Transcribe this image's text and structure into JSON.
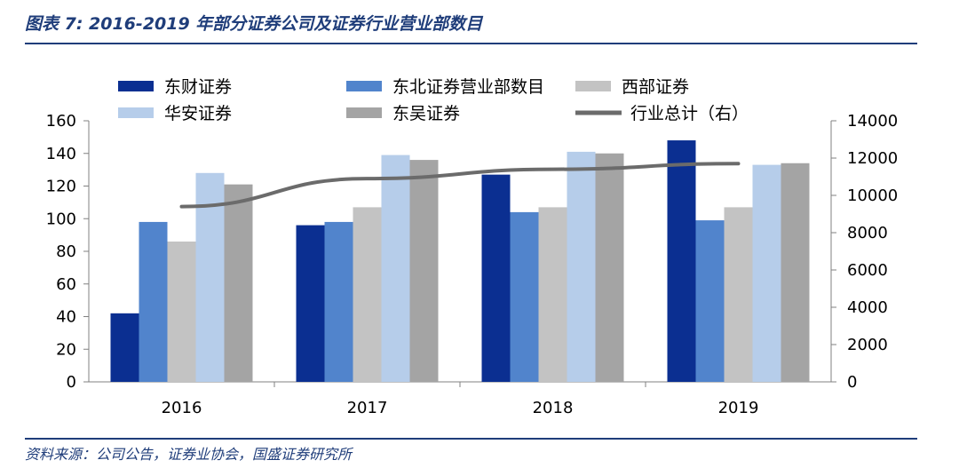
{
  "figure": {
    "title": "图表 7:  2016-2019 年部分证券公司及证券行业营业部数目",
    "source": "资料来源：公司公告，证券业协会，国盛证券研究所"
  },
  "chart_data": {
    "type": "bar",
    "title": "2016-2019 年部分证券公司及证券行业营业部数目",
    "categories": [
      "2016",
      "2017",
      "2018",
      "2019"
    ],
    "ylim": [
      0,
      160
    ],
    "yticks": [
      "0",
      "20",
      "40",
      "60",
      "80",
      "100",
      "120",
      "140",
      "160"
    ],
    "y2lim": [
      0,
      14000
    ],
    "y2ticks": [
      "0",
      "2000",
      "4000",
      "6000",
      "8000",
      "10000",
      "12000",
      "14000"
    ],
    "legend_position": "top",
    "series": [
      {
        "name": "东财证券",
        "type": "bar",
        "color": "#0b2f91",
        "values": [
          42,
          96,
          127,
          148
        ]
      },
      {
        "name": "东北证券营业部数目",
        "type": "bar",
        "color": "#5184cc",
        "values": [
          98,
          98,
          104,
          99
        ]
      },
      {
        "name": "西部证券",
        "type": "bar",
        "color": "#c3c3c3",
        "values": [
          86,
          107,
          107,
          107
        ]
      },
      {
        "name": "华安证券",
        "type": "bar",
        "color": "#b6cdea",
        "values": [
          128,
          139,
          141,
          133
        ]
      },
      {
        "name": "东吴证券",
        "type": "bar",
        "color": "#a4a4a4",
        "values": [
          121,
          136,
          140,
          134
        ]
      },
      {
        "name": "行业总计（右）",
        "type": "line",
        "axis": "right",
        "color": "#6b6b6b",
        "values": [
          9400,
          10900,
          11400,
          11700
        ]
      }
    ]
  }
}
